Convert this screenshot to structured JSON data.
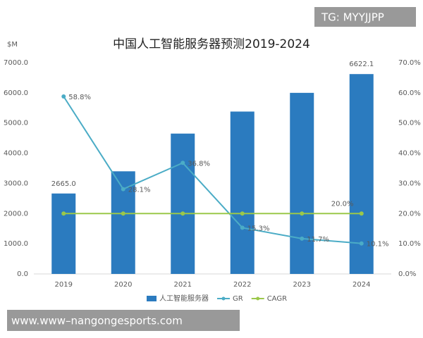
{
  "chart_data": {
    "type": "bar_line",
    "title": "中国人工智能服务器预测2019-2024",
    "y_label": "$M",
    "categories": [
      "2019",
      "2020",
      "2021",
      "2022",
      "2023",
      "2024"
    ],
    "series": [
      {
        "name": "人工智能服务器",
        "type": "bar",
        "color": "#2b7bbf",
        "values": [
          2665.0,
          3400,
          4650,
          5380,
          6000,
          6622.1
        ],
        "value_labels": [
          "2665.0",
          null,
          null,
          null,
          null,
          "6622.1"
        ]
      },
      {
        "name": "GR",
        "type": "line",
        "axis": "y2",
        "color": "#4bacc6",
        "values": [
          58.8,
          28.1,
          36.8,
          15.3,
          11.7,
          10.1
        ],
        "value_labels": [
          "58.8%",
          "28.1%",
          "36.8%",
          "15.3%",
          "11.7%",
          "10.1%"
        ]
      },
      {
        "name": "CAGR",
        "type": "line",
        "axis": "y2",
        "color": "#9bc84a",
        "values": [
          20.0,
          20.0,
          20.0,
          20.0,
          20.0,
          20.0
        ],
        "value_labels": [
          null,
          null,
          null,
          null,
          null,
          "20.0%"
        ]
      }
    ],
    "ylim": [
      0,
      7000
    ],
    "yticks": [
      {
        "value": 0,
        "label": "0.0"
      },
      {
        "value": 1000,
        "label": "1000.0"
      },
      {
        "value": 2000,
        "label": "2000.0"
      },
      {
        "value": 3000,
        "label": "3000.0"
      },
      {
        "value": 4000,
        "label": "4000.0"
      },
      {
        "value": 5000,
        "label": "5000.0"
      },
      {
        "value": 6000,
        "label": "6000.0"
      },
      {
        "value": 7000,
        "label": "7000.0"
      }
    ],
    "y2lim": [
      0,
      70
    ],
    "y2ticks": [
      {
        "value": 0,
        "label": "0.0%"
      },
      {
        "value": 10,
        "label": "10.0%"
      },
      {
        "value": 20,
        "label": "20.0%"
      },
      {
        "value": 30,
        "label": "30.0%"
      },
      {
        "value": 40,
        "label": "40.0%"
      },
      {
        "value": 50,
        "label": "50.0%"
      },
      {
        "value": 60,
        "label": "60.0%"
      },
      {
        "value": 70,
        "label": "70.0%"
      }
    ],
    "grid": false,
    "legend": "bottom"
  },
  "watermarks": {
    "top": "TG: MYYJJPP",
    "bottom": "www.www–nangongesports.com"
  }
}
